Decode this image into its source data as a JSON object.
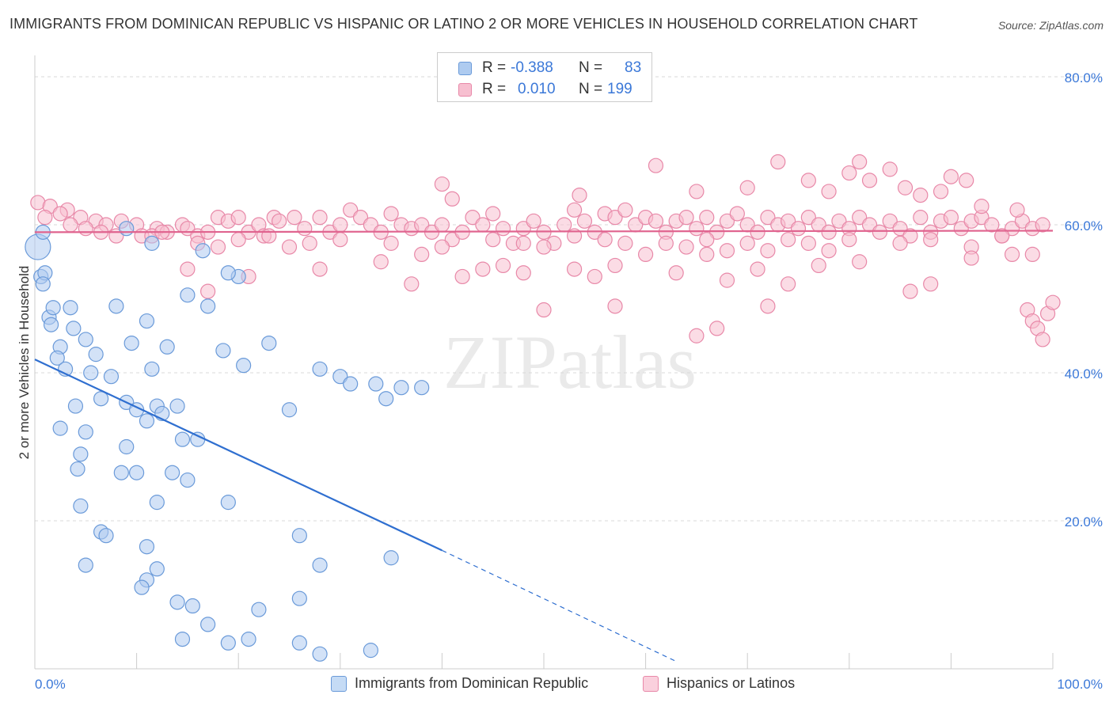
{
  "title": "IMMIGRANTS FROM DOMINICAN REPUBLIC VS HISPANIC OR LATINO 2 OR MORE VEHICLES IN HOUSEHOLD CORRELATION CHART",
  "source": "Source: ZipAtlas.com",
  "watermark": "ZIPatlas",
  "legend": {
    "rows": [
      {
        "r_label": "R =",
        "r_value": "-0.388",
        "n_label": "N =",
        "n_value": "83"
      },
      {
        "r_label": "R =",
        "r_value": "0.010",
        "n_label": "N =",
        "n_value": "199"
      }
    ]
  },
  "bottom_legend": {
    "series1": "Immigrants from Dominican Republic",
    "series2": "Hispanics or Latinos"
  },
  "colors": {
    "series1_fill": "#aecbf0",
    "series1_stroke": "#6a9ad9",
    "series1_line": "#2f6fd0",
    "series2_fill": "#f7bfd0",
    "series2_stroke": "#e888a8",
    "series2_line": "#e0648f",
    "tick_text": "#3b78d8",
    "grid": "#d8d8d8"
  },
  "chart_data": {
    "type": "scatter",
    "title": "IMMIGRANTS FROM DOMINICAN REPUBLIC VS HISPANIC OR LATINO 2 OR MORE VEHICLES IN HOUSEHOLD CORRELATION CHART",
    "xlabel": "",
    "ylabel": "2 or more Vehicles in Household",
    "xlim": [
      0,
      100
    ],
    "ylim": [
      0,
      80
    ],
    "x_tick_labels": [
      "0.0%",
      "100.0%"
    ],
    "y_ticks": [
      20,
      40,
      60,
      80
    ],
    "y_tick_labels": [
      "20.0%",
      "40.0%",
      "60.0%",
      "80.0%"
    ],
    "grid": true,
    "legend_position": "top-center",
    "series": [
      {
        "name": "Immigrants from Dominican Republic",
        "r": -0.388,
        "n": 83,
        "trend": {
          "x_start": 0,
          "y_start": 41.8,
          "x_end": 40,
          "y_end": 16.0,
          "dashed_to_x": 63,
          "dashed_to_y": 1.0
        },
        "points": [
          [
            0.3,
            57.0
          ],
          [
            0.6,
            53.0
          ],
          [
            1.0,
            53.5
          ],
          [
            0.8,
            52.0
          ],
          [
            1.4,
            47.5
          ],
          [
            1.8,
            48.8
          ],
          [
            3.5,
            48.8
          ],
          [
            1.6,
            46.5
          ],
          [
            3.8,
            46.0
          ],
          [
            2.5,
            43.5
          ],
          [
            2.2,
            42.0
          ],
          [
            3.0,
            40.5
          ],
          [
            5.0,
            44.5
          ],
          [
            6.0,
            42.5
          ],
          [
            8.0,
            49.0
          ],
          [
            9.5,
            44.0
          ],
          [
            11.0,
            47.0
          ],
          [
            5.5,
            40.0
          ],
          [
            7.5,
            39.5
          ],
          [
            11.5,
            40.5
          ],
          [
            13.0,
            43.5
          ],
          [
            15.0,
            50.5
          ],
          [
            17.0,
            49.0
          ],
          [
            18.5,
            43.0
          ],
          [
            20.0,
            53.0
          ],
          [
            20.5,
            41.0
          ],
          [
            23.0,
            44.0
          ],
          [
            28.0,
            40.5
          ],
          [
            30.0,
            39.5
          ],
          [
            31.0,
            38.5
          ],
          [
            33.5,
            38.5
          ],
          [
            34.5,
            36.5
          ],
          [
            36.0,
            38.0
          ],
          [
            38.0,
            38.0
          ],
          [
            4.0,
            35.5
          ],
          [
            6.5,
            36.5
          ],
          [
            9.0,
            36.0
          ],
          [
            12.0,
            35.5
          ],
          [
            14.0,
            35.5
          ],
          [
            10.0,
            35.0
          ],
          [
            11.0,
            33.5
          ],
          [
            12.5,
            34.5
          ],
          [
            2.5,
            32.5
          ],
          [
            5.0,
            32.0
          ],
          [
            9.0,
            30.0
          ],
          [
            14.5,
            31.0
          ],
          [
            16.0,
            31.0
          ],
          [
            25.0,
            35.0
          ],
          [
            4.5,
            29.0
          ],
          [
            4.2,
            27.0
          ],
          [
            8.5,
            26.5
          ],
          [
            10.0,
            26.5
          ],
          [
            13.5,
            26.5
          ],
          [
            15.0,
            25.5
          ],
          [
            4.5,
            22.0
          ],
          [
            12.0,
            22.5
          ],
          [
            19.0,
            22.5
          ],
          [
            6.5,
            18.5
          ],
          [
            7.0,
            18.0
          ],
          [
            11.0,
            16.5
          ],
          [
            26.0,
            18.0
          ],
          [
            28.0,
            14.0
          ],
          [
            35.0,
            15.0
          ],
          [
            5.0,
            14.0
          ],
          [
            12.0,
            13.5
          ],
          [
            11.0,
            12.0
          ],
          [
            10.5,
            11.0
          ],
          [
            14.0,
            9.0
          ],
          [
            15.5,
            8.5
          ],
          [
            26.0,
            9.5
          ],
          [
            22.0,
            8.0
          ],
          [
            17.0,
            6.0
          ],
          [
            14.5,
            4.0
          ],
          [
            19.0,
            3.5
          ],
          [
            21.0,
            4.0
          ],
          [
            26.0,
            3.5
          ],
          [
            28.0,
            2.0
          ],
          [
            33.0,
            2.5
          ],
          [
            0.8,
            59.0
          ],
          [
            9.0,
            59.5
          ],
          [
            11.5,
            57.5
          ],
          [
            19.0,
            53.5
          ],
          [
            16.5,
            56.5
          ]
        ]
      },
      {
        "name": "Hispanics or Latinos",
        "r": 0.01,
        "n": 199,
        "trend": {
          "x_start": 0,
          "y_start": 59.0,
          "x_end": 100,
          "y_end": 59.2
        },
        "points": [
          [
            0.3,
            63.0
          ],
          [
            1.5,
            62.5
          ],
          [
            3.2,
            62.0
          ],
          [
            2.5,
            61.5
          ],
          [
            1.0,
            61.0
          ],
          [
            4.5,
            61.0
          ],
          [
            6.0,
            60.5
          ],
          [
            3.5,
            60.0
          ],
          [
            5.0,
            59.5
          ],
          [
            7.0,
            60.0
          ],
          [
            8.5,
            60.5
          ],
          [
            10.0,
            60.0
          ],
          [
            12.0,
            59.5
          ],
          [
            13.0,
            59.0
          ],
          [
            14.5,
            60.0
          ],
          [
            6.5,
            59.0
          ],
          [
            8.0,
            58.5
          ],
          [
            10.5,
            58.5
          ],
          [
            11.5,
            58.5
          ],
          [
            12.5,
            59.0
          ],
          [
            15.0,
            59.5
          ],
          [
            16.0,
            58.5
          ],
          [
            17.0,
            59.0
          ],
          [
            18.0,
            61.0
          ],
          [
            19.0,
            60.5
          ],
          [
            20.0,
            61.0
          ],
          [
            21.0,
            59.0
          ],
          [
            22.0,
            60.0
          ],
          [
            22.5,
            58.5
          ],
          [
            23.5,
            61.0
          ],
          [
            24.0,
            60.5
          ],
          [
            25.5,
            61.0
          ],
          [
            26.5,
            59.5
          ],
          [
            28.0,
            61.0
          ],
          [
            29.0,
            59.0
          ],
          [
            30.0,
            60.0
          ],
          [
            31.0,
            62.0
          ],
          [
            32.0,
            61.0
          ],
          [
            33.0,
            60.0
          ],
          [
            34.0,
            59.0
          ],
          [
            35.0,
            61.5
          ],
          [
            36.0,
            60.0
          ],
          [
            37.0,
            59.5
          ],
          [
            38.0,
            60.0
          ],
          [
            39.0,
            59.0
          ],
          [
            40.0,
            60.0
          ],
          [
            41.0,
            58.0
          ],
          [
            42.0,
            59.0
          ],
          [
            43.0,
            61.0
          ],
          [
            44.0,
            60.0
          ],
          [
            45.0,
            61.5
          ],
          [
            46.0,
            59.5
          ],
          [
            47.0,
            57.5
          ],
          [
            48.0,
            59.5
          ],
          [
            49.0,
            60.5
          ],
          [
            50.0,
            59.0
          ],
          [
            51.0,
            57.5
          ],
          [
            52.0,
            60.0
          ],
          [
            53.0,
            62.0
          ],
          [
            54.0,
            60.5
          ],
          [
            55.0,
            59.0
          ],
          [
            56.0,
            61.5
          ],
          [
            57.0,
            61.0
          ],
          [
            58.0,
            62.0
          ],
          [
            59.0,
            60.0
          ],
          [
            60.0,
            61.0
          ],
          [
            61.0,
            60.5
          ],
          [
            62.0,
            59.0
          ],
          [
            63.0,
            60.5
          ],
          [
            64.0,
            61.0
          ],
          [
            65.0,
            59.5
          ],
          [
            66.0,
            61.0
          ],
          [
            67.0,
            59.0
          ],
          [
            68.0,
            60.5
          ],
          [
            69.0,
            61.5
          ],
          [
            70.0,
            60.0
          ],
          [
            71.0,
            59.0
          ],
          [
            72.0,
            61.0
          ],
          [
            73.0,
            60.0
          ],
          [
            74.0,
            60.5
          ],
          [
            75.0,
            59.5
          ],
          [
            76.0,
            61.0
          ],
          [
            77.0,
            60.0
          ],
          [
            78.0,
            59.0
          ],
          [
            79.0,
            60.5
          ],
          [
            80.0,
            59.5
          ],
          [
            81.0,
            61.0
          ],
          [
            82.0,
            60.0
          ],
          [
            83.0,
            59.0
          ],
          [
            84.0,
            60.5
          ],
          [
            85.0,
            59.5
          ],
          [
            86.0,
            58.5
          ],
          [
            87.0,
            61.0
          ],
          [
            88.0,
            59.0
          ],
          [
            89.0,
            60.5
          ],
          [
            90.0,
            61.0
          ],
          [
            91.0,
            59.5
          ],
          [
            92.0,
            60.5
          ],
          [
            93.0,
            61.0
          ],
          [
            94.0,
            60.0
          ],
          [
            95.0,
            58.5
          ],
          [
            96.0,
            59.5
          ],
          [
            97.0,
            60.5
          ],
          [
            98.0,
            59.5
          ],
          [
            99.0,
            60.0
          ],
          [
            16.0,
            57.5
          ],
          [
            18.0,
            57.0
          ],
          [
            20.0,
            58.0
          ],
          [
            23.0,
            58.5
          ],
          [
            25.0,
            57.0
          ],
          [
            27.0,
            57.5
          ],
          [
            30.0,
            58.0
          ],
          [
            35.0,
            57.5
          ],
          [
            38.0,
            56.0
          ],
          [
            40.0,
            57.0
          ],
          [
            45.0,
            58.0
          ],
          [
            48.0,
            57.5
          ],
          [
            50.0,
            57.0
          ],
          [
            53.0,
            58.5
          ],
          [
            56.0,
            58.0
          ],
          [
            58.0,
            57.5
          ],
          [
            60.0,
            56.0
          ],
          [
            62.0,
            57.5
          ],
          [
            64.0,
            57.0
          ],
          [
            66.0,
            58.0
          ],
          [
            68.0,
            56.5
          ],
          [
            70.0,
            57.5
          ],
          [
            72.0,
            56.5
          ],
          [
            74.0,
            58.0
          ],
          [
            76.0,
            57.5
          ],
          [
            78.0,
            56.5
          ],
          [
            80.0,
            58.0
          ],
          [
            85.0,
            57.5
          ],
          [
            88.0,
            58.0
          ],
          [
            92.0,
            57.0
          ],
          [
            95.0,
            58.5
          ],
          [
            98.0,
            56.0
          ],
          [
            15.0,
            54.0
          ],
          [
            17.0,
            51.0
          ],
          [
            21.0,
            53.0
          ],
          [
            28.0,
            54.0
          ],
          [
            34.0,
            55.0
          ],
          [
            37.0,
            52.0
          ],
          [
            42.0,
            53.0
          ],
          [
            44.0,
            54.0
          ],
          [
            46.0,
            54.5
          ],
          [
            48.0,
            53.5
          ],
          [
            53.0,
            54.0
          ],
          [
            55.0,
            53.0
          ],
          [
            57.0,
            54.5
          ],
          [
            63.0,
            53.5
          ],
          [
            66.0,
            56.0
          ],
          [
            68.0,
            52.5
          ],
          [
            71.0,
            54.0
          ],
          [
            74.0,
            52.0
          ],
          [
            77.0,
            54.5
          ],
          [
            81.0,
            55.0
          ],
          [
            86.0,
            51.0
          ],
          [
            88.0,
            52.0
          ],
          [
            92.0,
            55.5
          ],
          [
            96.0,
            56.0
          ],
          [
            50.0,
            48.5
          ],
          [
            57.0,
            49.0
          ],
          [
            65.0,
            45.0
          ],
          [
            67.0,
            46.0
          ],
          [
            72.0,
            49.0
          ],
          [
            97.5,
            48.5
          ],
          [
            98.0,
            47.0
          ],
          [
            98.5,
            46.0
          ],
          [
            99.0,
            44.5
          ],
          [
            99.5,
            48.0
          ],
          [
            100.0,
            49.5
          ],
          [
            40.0,
            65.5
          ],
          [
            41.0,
            63.5
          ],
          [
            53.5,
            64.0
          ],
          [
            61.0,
            68.0
          ],
          [
            65.0,
            64.5
          ],
          [
            70.0,
            65.0
          ],
          [
            73.0,
            68.5
          ],
          [
            76.0,
            66.0
          ],
          [
            78.0,
            64.5
          ],
          [
            80.0,
            67.0
          ],
          [
            81.0,
            68.5
          ],
          [
            82.0,
            66.0
          ],
          [
            84.0,
            67.5
          ],
          [
            85.5,
            65.0
          ],
          [
            87.0,
            64.0
          ],
          [
            89.0,
            64.5
          ],
          [
            90.0,
            66.5
          ],
          [
            91.5,
            66.0
          ],
          [
            93.0,
            62.5
          ],
          [
            96.5,
            62.0
          ]
        ]
      }
    ]
  }
}
